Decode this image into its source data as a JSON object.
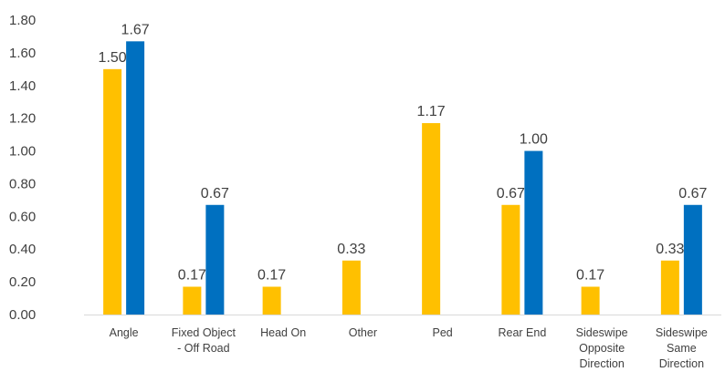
{
  "chart_data": {
    "type": "bar",
    "title": "",
    "xlabel": "",
    "ylabel": "",
    "ylim": [
      0,
      1.8
    ],
    "y_ticks": [
      "0.00",
      "0.20",
      "0.40",
      "0.60",
      "0.80",
      "1.00",
      "1.20",
      "1.40",
      "1.60",
      "1.80"
    ],
    "grid": false,
    "legend": "none",
    "categories": [
      [
        "Angle"
      ],
      [
        "Fixed Object",
        "- Off Road"
      ],
      [
        "Head On"
      ],
      [
        "Other"
      ],
      [
        "Ped"
      ],
      [
        "Rear End"
      ],
      [
        "Sideswipe",
        "Opposite",
        "Direction"
      ],
      [
        "Sideswipe",
        "Same",
        "Direction"
      ]
    ],
    "series": [
      {
        "color": "#FFC000",
        "values": [
          1.5,
          0.17,
          0.17,
          0.33,
          1.17,
          0.67,
          0.17,
          0.33
        ],
        "labels": [
          "1.50",
          "0.17",
          "0.17",
          "0.33",
          "1.17",
          "0.67",
          "0.17",
          "0.33"
        ]
      },
      {
        "color": "#0070C0",
        "values": [
          1.67,
          0.67,
          0,
          0,
          0,
          1.0,
          0,
          0.67
        ],
        "labels": [
          "1.67",
          "0.67",
          "",
          "",
          "",
          "1.00",
          "",
          "0.67"
        ]
      }
    ]
  }
}
